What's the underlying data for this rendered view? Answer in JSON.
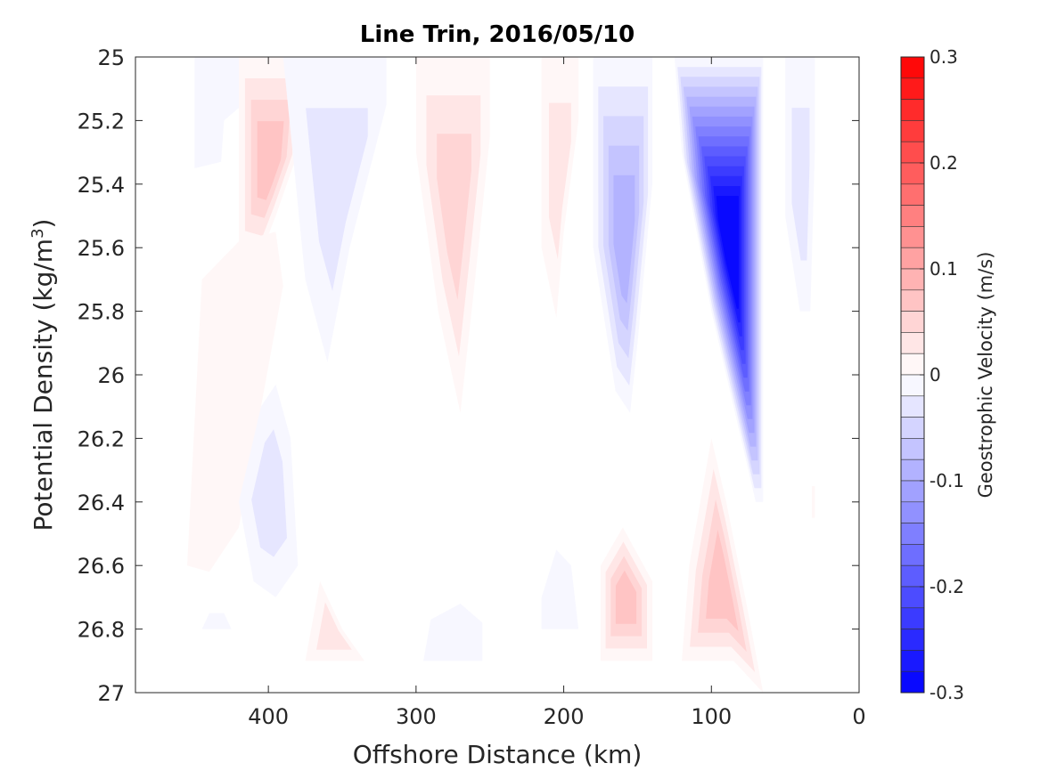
{
  "chart_data": {
    "type": "contour",
    "title": "Line Trin, 2016/05/10",
    "xlabel": "Offshore Distance (km)",
    "ylabel_main": "Potential Density (kg/m",
    "ylabel_sup": "3",
    "ylabel_close": ")",
    "xlim": [
      490,
      0
    ],
    "ylim": [
      25,
      27
    ],
    "x_reversed": true,
    "y_reversed": true,
    "x_ticks": [
      400,
      300,
      200,
      100,
      0
    ],
    "x_tick_labels": [
      "400",
      "300",
      "200",
      "100",
      "0"
    ],
    "y_ticks": [
      25,
      25.2,
      25.4,
      25.6,
      25.8,
      26,
      26.2,
      26.4,
      26.6,
      26.8,
      27
    ],
    "y_tick_labels": [
      "25",
      "25.2",
      "25.4",
      "25.6",
      "25.8",
      "26",
      "26.2",
      "26.4",
      "26.6",
      "26.8",
      "27"
    ],
    "colorbar": {
      "label": "Geostrophic Velocity (m/s)",
      "range": [
        -0.3,
        0.3
      ],
      "level_step": 0.02,
      "ticks": [
        0.3,
        0.2,
        0.1,
        0,
        -0.1,
        -0.2,
        -0.3
      ],
      "tick_labels": [
        "0.3",
        "0.2",
        "0.1",
        "0",
        "-0.1",
        "-0.2",
        "-0.3"
      ],
      "positive_color": "#ff0000",
      "negative_color": "#0000ff",
      "zero_color": "#ffffff"
    },
    "features": [
      {
        "sign": "neg",
        "peak": -0.02,
        "points": [
          [
            450,
            25
          ],
          [
            405,
            25
          ],
          [
            405,
            25.1
          ],
          [
            430,
            25.2
          ],
          [
            432,
            25.33
          ],
          [
            450,
            25.35
          ]
        ]
      },
      {
        "sign": "pos",
        "peak": 0.08,
        "points": [
          [
            420,
            25
          ],
          [
            375,
            25
          ],
          [
            380,
            25.3
          ],
          [
            395,
            25.5
          ],
          [
            405,
            25.62
          ],
          [
            420,
            25.6
          ]
        ]
      },
      {
        "sign": "pos",
        "peak": 0.02,
        "points": [
          [
            455,
            26.6
          ],
          [
            440,
            26.62
          ],
          [
            420,
            26.48
          ],
          [
            405,
            26.1
          ],
          [
            390,
            25.72
          ],
          [
            395,
            25.55
          ],
          [
            420,
            25.58
          ],
          [
            445,
            25.7
          ]
        ]
      },
      {
        "sign": "neg",
        "peak": -0.04,
        "points": [
          [
            390,
            25
          ],
          [
            320,
            25
          ],
          [
            320,
            25.15
          ],
          [
            345,
            25.6
          ],
          [
            360,
            25.96
          ],
          [
            375,
            25.7
          ]
        ]
      },
      {
        "sign": "pos",
        "peak": 0.06,
        "points": [
          [
            300,
            25
          ],
          [
            250,
            25
          ],
          [
            250,
            25.25
          ],
          [
            260,
            25.7
          ],
          [
            270,
            26.12
          ],
          [
            285,
            25.8
          ],
          [
            300,
            25.3
          ]
        ]
      },
      {
        "sign": "pos",
        "peak": 0.03,
        "points": [
          [
            215,
            25
          ],
          [
            190,
            25
          ],
          [
            190,
            25.2
          ],
          [
            200,
            25.55
          ],
          [
            205,
            25.82
          ],
          [
            215,
            25.6
          ]
        ]
      },
      {
        "sign": "neg",
        "peak": -0.1,
        "points": [
          [
            180,
            25
          ],
          [
            140,
            25
          ],
          [
            140,
            25.4
          ],
          [
            150,
            25.9
          ],
          [
            155,
            26.12
          ],
          [
            165,
            26.05
          ],
          [
            180,
            25.6
          ]
        ]
      },
      {
        "sign": "neg",
        "peak": -0.3,
        "points": [
          [
            125,
            25
          ],
          [
            65,
            25
          ],
          [
            65,
            25.2
          ],
          [
            65,
            26.4
          ],
          [
            70,
            26.4
          ],
          [
            100,
            25.8
          ],
          [
            120,
            25.3
          ]
        ]
      },
      {
        "sign": "neg",
        "peak": -0.04,
        "points": [
          [
            50,
            25
          ],
          [
            30,
            25
          ],
          [
            30,
            25.3
          ],
          [
            33,
            25.8
          ],
          [
            40,
            25.8
          ],
          [
            50,
            25.5
          ]
        ]
      },
      {
        "sign": "neg",
        "peak": -0.04,
        "points": [
          [
            395,
            26.03
          ],
          [
            385,
            26.2
          ],
          [
            380,
            26.6
          ],
          [
            395,
            26.7
          ],
          [
            410,
            26.65
          ],
          [
            420,
            26.4
          ],
          [
            405,
            26.1
          ]
        ]
      },
      {
        "sign": "pos",
        "peak": 0.04,
        "points": [
          [
            375,
            26.9
          ],
          [
            335,
            26.9
          ],
          [
            350,
            26.8
          ],
          [
            365,
            26.65
          ]
        ]
      },
      {
        "sign": "neg",
        "peak": -0.02,
        "points": [
          [
            295,
            26.9
          ],
          [
            255,
            26.9
          ],
          [
            255,
            26.78
          ],
          [
            270,
            26.72
          ],
          [
            290,
            26.77
          ]
        ]
      },
      {
        "sign": "neg",
        "peak": -0.02,
        "points": [
          [
            215,
            26.8
          ],
          [
            190,
            26.8
          ],
          [
            195,
            26.6
          ],
          [
            205,
            26.55
          ],
          [
            215,
            26.7
          ]
        ]
      },
      {
        "sign": "pos",
        "peak": 0.08,
        "points": [
          [
            175,
            26.9
          ],
          [
            140,
            26.9
          ],
          [
            140,
            26.65
          ],
          [
            160,
            26.48
          ],
          [
            175,
            26.6
          ]
        ]
      },
      {
        "sign": "pos",
        "peak": 0.08,
        "points": [
          [
            120,
            26.9
          ],
          [
            85,
            26.9
          ],
          [
            65,
            27
          ],
          [
            75,
            26.75
          ],
          [
            90,
            26.4
          ],
          [
            100,
            26.2
          ],
          [
            115,
            26.6
          ]
        ]
      },
      {
        "sign": "neg",
        "peak": -0.02,
        "points": [
          [
            445,
            26.8
          ],
          [
            425,
            26.8
          ],
          [
            430,
            26.75
          ],
          [
            440,
            26.75
          ]
        ]
      },
      {
        "sign": "pos",
        "peak": 0.02,
        "points": [
          [
            32,
            26.35
          ],
          [
            30,
            26.35
          ],
          [
            30,
            26.45
          ],
          [
            32,
            26.45
          ]
        ]
      }
    ]
  }
}
